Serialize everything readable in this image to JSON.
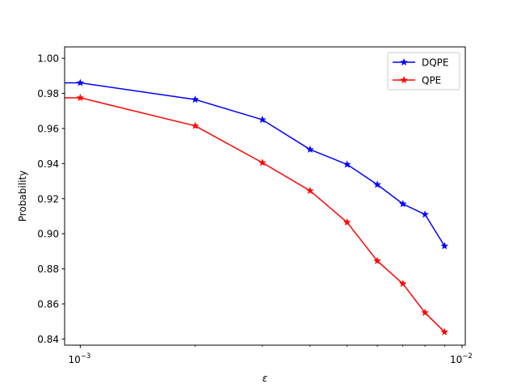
{
  "chart_data": {
    "type": "line",
    "title": "",
    "xlabel": "ε",
    "ylabel": "Probability",
    "xscale": "log",
    "xlim": [
      0.00091,
      0.0102
    ],
    "ylim": [
      0.8365,
      1.0065
    ],
    "xticks": [
      {
        "value": 0.001,
        "base": "10",
        "exp": "−3"
      },
      {
        "value": 0.01,
        "base": "10",
        "exp": "−2"
      }
    ],
    "yticks": [
      0.84,
      0.86,
      0.88,
      0.9,
      0.92,
      0.94,
      0.96,
      0.98,
      1.0
    ],
    "ytick_labels": [
      "0.84",
      "0.86",
      "0.88",
      "0.90",
      "0.92",
      "0.94",
      "0.96",
      "0.98",
      "1.00"
    ],
    "grid": false,
    "legend_position": "top-right",
    "series": [
      {
        "name": "DQPE",
        "color": "#0000ff",
        "marker": "star",
        "x": [
          0.001,
          0.002,
          0.003,
          0.004,
          0.005,
          0.006,
          0.007,
          0.008,
          0.009
        ],
        "y": [
          0.986,
          0.9765,
          0.965,
          0.948,
          0.9395,
          0.928,
          0.917,
          0.911,
          0.893
        ],
        "extends_left_to": 0.00091,
        "y_left": 0.986
      },
      {
        "name": "QPE",
        "color": "#ff0000",
        "marker": "star",
        "x": [
          0.001,
          0.002,
          0.003,
          0.004,
          0.005,
          0.006,
          0.007,
          0.008,
          0.009
        ],
        "y": [
          0.9775,
          0.9615,
          0.9405,
          0.9245,
          0.9065,
          0.8845,
          0.8715,
          0.855,
          0.844
        ],
        "extends_left_to": 0.00091,
        "y_left": 0.9775
      }
    ]
  }
}
